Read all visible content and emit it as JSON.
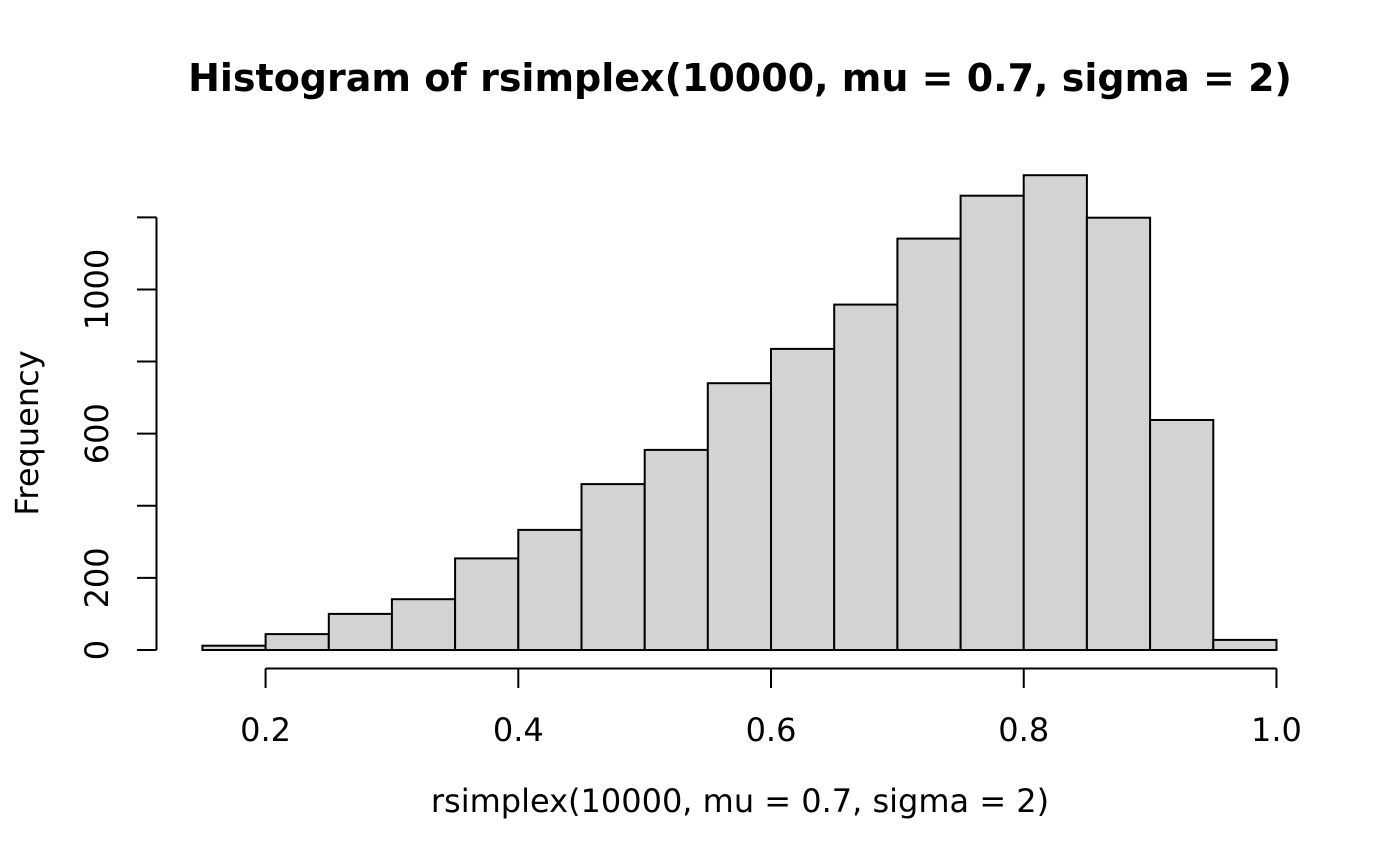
{
  "chart_data": {
    "type": "bar",
    "subtype": "histogram",
    "title": "Histogram of rsimplex(10000, mu = 0.7, sigma = 2)",
    "xlabel": "rsimplex(10000, mu = 0.7, sigma = 2)",
    "ylabel": "Frequency",
    "bin_start": 0.15,
    "bin_width": 0.05,
    "counts": [
      12,
      44,
      100,
      141,
      254,
      333,
      460,
      555,
      740,
      835,
      958,
      1141,
      1260,
      1317,
      1199,
      638,
      28
    ],
    "xlim": [
      0.15,
      1.0
    ],
    "ylim": [
      0,
      1200
    ],
    "x_axis": {
      "ticks": [
        {
          "value": 0.2,
          "text": "0.2"
        },
        {
          "value": 0.4,
          "text": "0.4"
        },
        {
          "value": 0.6,
          "text": "0.6"
        },
        {
          "value": 0.8,
          "text": "0.8"
        },
        {
          "value": 1.0,
          "text": "1.0"
        }
      ]
    },
    "y_axis": {
      "ticks": [
        0,
        200,
        400,
        600,
        800,
        1000,
        1200
      ],
      "labels": [
        {
          "value": 0,
          "text": "0"
        },
        {
          "value": 200,
          "text": "200"
        },
        {
          "value": 600,
          "text": "600"
        },
        {
          "value": 1000,
          "text": "1000"
        }
      ]
    },
    "grid": false,
    "legend": false,
    "colors": {
      "bar_fill": "#D3D3D3",
      "bar_stroke": "#000000",
      "axis": "#000000",
      "text": "#000000",
      "background": "#FFFFFF"
    }
  }
}
